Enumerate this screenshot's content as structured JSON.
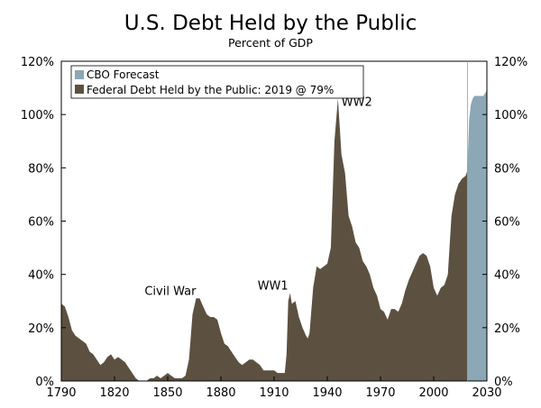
{
  "chart_data": {
    "type": "area",
    "title": "U.S. Debt Held by the Public",
    "subtitle": "Percent of GDP",
    "xlim": [
      1790,
      2030
    ],
    "ylim": [
      0,
      120
    ],
    "x_ticks": [
      1790,
      1820,
      1850,
      1880,
      1910,
      1940,
      1970,
      2000,
      2030
    ],
    "y_ticks": [
      0,
      20,
      40,
      60,
      80,
      100,
      120
    ],
    "y_tick_labels": [
      "0%",
      "20%",
      "40%",
      "60%",
      "80%",
      "100%",
      "120%"
    ],
    "grid": false,
    "legend_position": "top-left",
    "series": [
      {
        "name": "CBO Forecast",
        "color": "#8ca7b5",
        "points": [
          [
            2019,
            79
          ],
          [
            2020,
            98
          ],
          [
            2021,
            104
          ],
          [
            2022,
            106
          ],
          [
            2023,
            107
          ],
          [
            2024,
            107
          ],
          [
            2025,
            107
          ],
          [
            2026,
            107
          ],
          [
            2027,
            107
          ],
          [
            2028,
            107
          ],
          [
            2029,
            108
          ],
          [
            2030,
            109
          ]
        ]
      },
      {
        "name": "Federal Debt Held by the Public: 2019 @ 79%",
        "color": "#5c5140",
        "points": [
          [
            1790,
            29
          ],
          [
            1792,
            28
          ],
          [
            1794,
            24
          ],
          [
            1796,
            19
          ],
          [
            1798,
            17
          ],
          [
            1800,
            16
          ],
          [
            1802,
            15
          ],
          [
            1804,
            14
          ],
          [
            1806,
            11
          ],
          [
            1808,
            10
          ],
          [
            1810,
            8
          ],
          [
            1812,
            6
          ],
          [
            1814,
            7
          ],
          [
            1816,
            9
          ],
          [
            1818,
            10
          ],
          [
            1820,
            8
          ],
          [
            1822,
            9
          ],
          [
            1824,
            8
          ],
          [
            1826,
            7
          ],
          [
            1828,
            5
          ],
          [
            1830,
            3
          ],
          [
            1832,
            1
          ],
          [
            1834,
            0
          ],
          [
            1836,
            0
          ],
          [
            1838,
            0
          ],
          [
            1840,
            1
          ],
          [
            1842,
            1
          ],
          [
            1844,
            2
          ],
          [
            1846,
            1
          ],
          [
            1848,
            2
          ],
          [
            1850,
            3
          ],
          [
            1852,
            2
          ],
          [
            1854,
            1
          ],
          [
            1856,
            1
          ],
          [
            1858,
            1
          ],
          [
            1860,
            2
          ],
          [
            1862,
            8
          ],
          [
            1864,
            25
          ],
          [
            1866,
            31
          ],
          [
            1868,
            31
          ],
          [
            1870,
            28
          ],
          [
            1872,
            25
          ],
          [
            1874,
            24
          ],
          [
            1876,
            24
          ],
          [
            1878,
            23
          ],
          [
            1880,
            18
          ],
          [
            1882,
            14
          ],
          [
            1884,
            13
          ],
          [
            1886,
            11
          ],
          [
            1888,
            9
          ],
          [
            1890,
            7
          ],
          [
            1892,
            6
          ],
          [
            1894,
            7
          ],
          [
            1896,
            8
          ],
          [
            1898,
            8
          ],
          [
            1900,
            7
          ],
          [
            1902,
            6
          ],
          [
            1904,
            4
          ],
          [
            1906,
            4
          ],
          [
            1908,
            4
          ],
          [
            1910,
            4
          ],
          [
            1912,
            3
          ],
          [
            1914,
            3
          ],
          [
            1916,
            3
          ],
          [
            1917,
            10
          ],
          [
            1918,
            30
          ],
          [
            1919,
            33
          ],
          [
            1920,
            29
          ],
          [
            1922,
            30
          ],
          [
            1924,
            24
          ],
          [
            1926,
            20
          ],
          [
            1928,
            17
          ],
          [
            1929,
            16
          ],
          [
            1930,
            18
          ],
          [
            1932,
            35
          ],
          [
            1934,
            43
          ],
          [
            1936,
            42
          ],
          [
            1938,
            43
          ],
          [
            1940,
            44
          ],
          [
            1942,
            50
          ],
          [
            1944,
            90
          ],
          [
            1946,
            106
          ],
          [
            1948,
            85
          ],
          [
            1950,
            78
          ],
          [
            1952,
            62
          ],
          [
            1954,
            58
          ],
          [
            1956,
            52
          ],
          [
            1958,
            50
          ],
          [
            1960,
            45
          ],
          [
            1962,
            43
          ],
          [
            1964,
            40
          ],
          [
            1966,
            35
          ],
          [
            1968,
            32
          ],
          [
            1970,
            27
          ],
          [
            1972,
            26
          ],
          [
            1974,
            23
          ],
          [
            1976,
            27
          ],
          [
            1978,
            27
          ],
          [
            1980,
            26
          ],
          [
            1982,
            29
          ],
          [
            1984,
            34
          ],
          [
            1986,
            38
          ],
          [
            1988,
            41
          ],
          [
            1990,
            44
          ],
          [
            1992,
            47
          ],
          [
            1994,
            48
          ],
          [
            1996,
            47
          ],
          [
            1998,
            43
          ],
          [
            2000,
            35
          ],
          [
            2002,
            32
          ],
          [
            2004,
            35
          ],
          [
            2006,
            36
          ],
          [
            2008,
            40
          ],
          [
            2010,
            62
          ],
          [
            2012,
            70
          ],
          [
            2014,
            74
          ],
          [
            2016,
            76
          ],
          [
            2018,
            77
          ],
          [
            2019,
            79
          ]
        ]
      }
    ],
    "annotations": [
      {
        "text": "Civil War",
        "x": 1867,
        "y": 31
      },
      {
        "text": "WW1",
        "x": 1919,
        "y": 33
      },
      {
        "text": "WW2",
        "x": 1946,
        "y": 106
      }
    ]
  }
}
